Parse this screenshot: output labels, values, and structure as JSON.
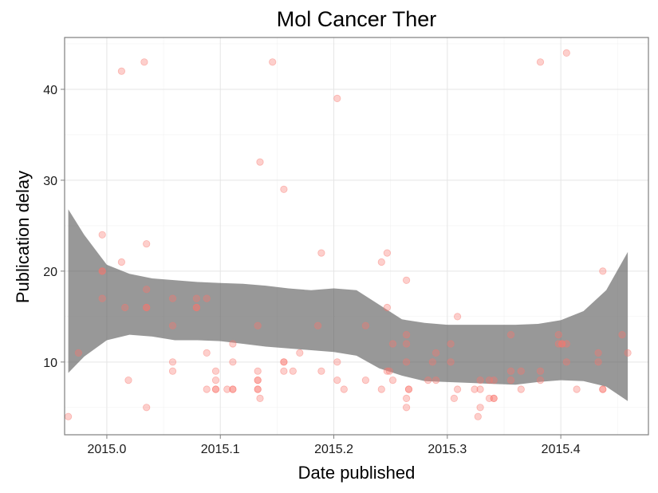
{
  "chart_data": {
    "type": "scatter",
    "title": "Mol Cancer Ther",
    "xlabel": "Date published",
    "ylabel": "Publication delay",
    "xlim": [
      2014.9628,
      2015.4772
    ],
    "ylim": [
      2.0,
      45.7
    ],
    "x_ticks": [
      2015.0,
      2015.1,
      2015.2,
      2015.3,
      2015.4
    ],
    "x_tick_labels": [
      "2015.0",
      "2015.1",
      "2015.2",
      "2015.3",
      "2015.4"
    ],
    "y_ticks": [
      10,
      20,
      30,
      40
    ],
    "y_tick_labels": [
      "10",
      "20",
      "30",
      "40"
    ],
    "grid": true,
    "legend": "none",
    "point_color": "#f8766d",
    "band_color": "#595959",
    "points": [
      {
        "x": 2014.966,
        "y": 4
      },
      {
        "x": 2014.975,
        "y": 11
      },
      {
        "x": 2014.996,
        "y": 24
      },
      {
        "x": 2014.996,
        "y": 20
      },
      {
        "x": 2014.996,
        "y": 20
      },
      {
        "x": 2014.996,
        "y": 17
      },
      {
        "x": 2015.013,
        "y": 42
      },
      {
        "x": 2015.013,
        "y": 21
      },
      {
        "x": 2015.016,
        "y": 16
      },
      {
        "x": 2015.019,
        "y": 8
      },
      {
        "x": 2015.033,
        "y": 43
      },
      {
        "x": 2015.035,
        "y": 23
      },
      {
        "x": 2015.035,
        "y": 18
      },
      {
        "x": 2015.035,
        "y": 16
      },
      {
        "x": 2015.035,
        "y": 16
      },
      {
        "x": 2015.035,
        "y": 5
      },
      {
        "x": 2015.058,
        "y": 17
      },
      {
        "x": 2015.058,
        "y": 14
      },
      {
        "x": 2015.058,
        "y": 10
      },
      {
        "x": 2015.058,
        "y": 9
      },
      {
        "x": 2015.079,
        "y": 17
      },
      {
        "x": 2015.079,
        "y": 16
      },
      {
        "x": 2015.079,
        "y": 16
      },
      {
        "x": 2015.088,
        "y": 17
      },
      {
        "x": 2015.088,
        "y": 11
      },
      {
        "x": 2015.088,
        "y": 7
      },
      {
        "x": 2015.096,
        "y": 9
      },
      {
        "x": 2015.096,
        "y": 8
      },
      {
        "x": 2015.096,
        "y": 7
      },
      {
        "x": 2015.096,
        "y": 7
      },
      {
        "x": 2015.106,
        "y": 7
      },
      {
        "x": 2015.111,
        "y": 12
      },
      {
        "x": 2015.111,
        "y": 10
      },
      {
        "x": 2015.111,
        "y": 7
      },
      {
        "x": 2015.111,
        "y": 7
      },
      {
        "x": 2015.133,
        "y": 14
      },
      {
        "x": 2015.133,
        "y": 9
      },
      {
        "x": 2015.133,
        "y": 8
      },
      {
        "x": 2015.133,
        "y": 8
      },
      {
        "x": 2015.133,
        "y": 7
      },
      {
        "x": 2015.133,
        "y": 7
      },
      {
        "x": 2015.135,
        "y": 32
      },
      {
        "x": 2015.135,
        "y": 6
      },
      {
        "x": 2015.146,
        "y": 43
      },
      {
        "x": 2015.156,
        "y": 29
      },
      {
        "x": 2015.156,
        "y": 10
      },
      {
        "x": 2015.156,
        "y": 10
      },
      {
        "x": 2015.156,
        "y": 9
      },
      {
        "x": 2015.164,
        "y": 9
      },
      {
        "x": 2015.17,
        "y": 11
      },
      {
        "x": 2015.186,
        "y": 14
      },
      {
        "x": 2015.189,
        "y": 22
      },
      {
        "x": 2015.189,
        "y": 9
      },
      {
        "x": 2015.203,
        "y": 39
      },
      {
        "x": 2015.203,
        "y": 10
      },
      {
        "x": 2015.203,
        "y": 8
      },
      {
        "x": 2015.209,
        "y": 7
      },
      {
        "x": 2015.228,
        "y": 14
      },
      {
        "x": 2015.228,
        "y": 8
      },
      {
        "x": 2015.242,
        "y": 21
      },
      {
        "x": 2015.242,
        "y": 7
      },
      {
        "x": 2015.247,
        "y": 22
      },
      {
        "x": 2015.247,
        "y": 16
      },
      {
        "x": 2015.247,
        "y": 9
      },
      {
        "x": 2015.249,
        "y": 9
      },
      {
        "x": 2015.252,
        "y": 12
      },
      {
        "x": 2015.252,
        "y": 8
      },
      {
        "x": 2015.264,
        "y": 19
      },
      {
        "x": 2015.264,
        "y": 13
      },
      {
        "x": 2015.264,
        "y": 12
      },
      {
        "x": 2015.264,
        "y": 10
      },
      {
        "x": 2015.264,
        "y": 6
      },
      {
        "x": 2015.264,
        "y": 5
      },
      {
        "x": 2015.266,
        "y": 7
      },
      {
        "x": 2015.266,
        "y": 7
      },
      {
        "x": 2015.283,
        "y": 8
      },
      {
        "x": 2015.287,
        "y": 10
      },
      {
        "x": 2015.29,
        "y": 11
      },
      {
        "x": 2015.29,
        "y": 8
      },
      {
        "x": 2015.303,
        "y": 12
      },
      {
        "x": 2015.303,
        "y": 10
      },
      {
        "x": 2015.306,
        "y": 6
      },
      {
        "x": 2015.309,
        "y": 15
      },
      {
        "x": 2015.309,
        "y": 7
      },
      {
        "x": 2015.324,
        "y": 7
      },
      {
        "x": 2015.327,
        "y": 4
      },
      {
        "x": 2015.329,
        "y": 8
      },
      {
        "x": 2015.329,
        "y": 7
      },
      {
        "x": 2015.329,
        "y": 5
      },
      {
        "x": 2015.337,
        "y": 8
      },
      {
        "x": 2015.337,
        "y": 6
      },
      {
        "x": 2015.341,
        "y": 8
      },
      {
        "x": 2015.341,
        "y": 6
      },
      {
        "x": 2015.341,
        "y": 6
      },
      {
        "x": 2015.356,
        "y": 13
      },
      {
        "x": 2015.356,
        "y": 9
      },
      {
        "x": 2015.356,
        "y": 8
      },
      {
        "x": 2015.365,
        "y": 9
      },
      {
        "x": 2015.365,
        "y": 7
      },
      {
        "x": 2015.382,
        "y": 43
      },
      {
        "x": 2015.382,
        "y": 9
      },
      {
        "x": 2015.382,
        "y": 8
      },
      {
        "x": 2015.398,
        "y": 13
      },
      {
        "x": 2015.398,
        "y": 12
      },
      {
        "x": 2015.401,
        "y": 12
      },
      {
        "x": 2015.401,
        "y": 12
      },
      {
        "x": 2015.405,
        "y": 44
      },
      {
        "x": 2015.405,
        "y": 12
      },
      {
        "x": 2015.405,
        "y": 10
      },
      {
        "x": 2015.414,
        "y": 7
      },
      {
        "x": 2015.433,
        "y": 11
      },
      {
        "x": 2015.433,
        "y": 10
      },
      {
        "x": 2015.437,
        "y": 20
      },
      {
        "x": 2015.437,
        "y": 7
      },
      {
        "x": 2015.437,
        "y": 7
      },
      {
        "x": 2015.454,
        "y": 13
      },
      {
        "x": 2015.459,
        "y": 11
      }
    ],
    "smooth_band": {
      "x": [
        2014.966,
        2014.98,
        2015.0,
        2015.02,
        2015.04,
        2015.06,
        2015.08,
        2015.1,
        2015.12,
        2015.14,
        2015.16,
        2015.18,
        2015.2,
        2015.22,
        2015.24,
        2015.26,
        2015.28,
        2015.3,
        2015.32,
        2015.34,
        2015.36,
        2015.38,
        2015.4,
        2015.42,
        2015.44,
        2015.459
      ],
      "upper": [
        26.8,
        24.0,
        20.7,
        19.7,
        19.2,
        19.0,
        18.8,
        18.7,
        18.6,
        18.4,
        18.1,
        17.9,
        18.1,
        17.9,
        16.3,
        14.7,
        14.3,
        14.1,
        14.1,
        14.1,
        14.1,
        14.2,
        14.6,
        15.6,
        17.9,
        22.1
      ],
      "lower": [
        8.8,
        10.6,
        12.4,
        13.0,
        12.8,
        12.4,
        12.4,
        12.3,
        12.0,
        11.7,
        11.5,
        11.3,
        11.1,
        10.7,
        9.3,
        8.5,
        7.9,
        7.8,
        7.7,
        7.6,
        7.5,
        7.8,
        8.0,
        7.9,
        7.3,
        5.7
      ]
    }
  }
}
